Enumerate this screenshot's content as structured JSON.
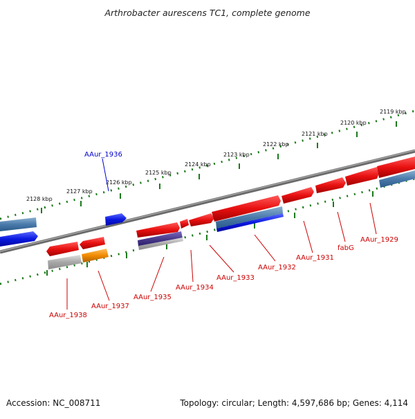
{
  "title": "Arthrobacter aurescens TC1, complete genome",
  "footer": {
    "accession": "Accession: NC_008711",
    "topology": "Topology: circular; Length: 4,597,686 bp; Genes: 4,114"
  },
  "ticks": [
    "2128 kbp",
    "2127 kbp",
    "2126 kbp",
    "2125 kbp",
    "2124 kbp",
    "2123 kbp",
    "2122 kbp",
    "2121 kbp",
    "2120 kbp",
    "2119 kbp"
  ],
  "gene_labels": [
    {
      "text": "AAur_1936",
      "color": "#0000cc",
      "strand": "top"
    },
    {
      "text": "AAur_1938",
      "color": "#cc0000",
      "strand": "bottom"
    },
    {
      "text": "AAur_1937",
      "color": "#cc0000",
      "strand": "bottom"
    },
    {
      "text": "AAur_1935",
      "color": "#cc0000",
      "strand": "bottom"
    },
    {
      "text": "AAur_1934",
      "color": "#cc0000",
      "strand": "bottom"
    },
    {
      "text": "AAur_1933",
      "color": "#cc0000",
      "strand": "bottom"
    },
    {
      "text": "AAur_1932",
      "color": "#cc0000",
      "strand": "bottom"
    },
    {
      "text": "AAur_1931",
      "color": "#cc0000",
      "strand": "bottom"
    },
    {
      "text": "fabG",
      "color": "#cc0000",
      "strand": "bottom"
    },
    {
      "text": "AAur_1929",
      "color": "#cc0000",
      "strand": "bottom"
    }
  ],
  "colors": {
    "backbone": "#7a7a7a",
    "tick": "#1a7a1a",
    "red_gene": "#e81010",
    "blue_gene": "#0a18e0",
    "steel_gene": "#4a7aaa",
    "gray_gene": "#a0a0a0",
    "orange_gene": "#f08a00",
    "purple_gene": "#4a3a8a"
  }
}
